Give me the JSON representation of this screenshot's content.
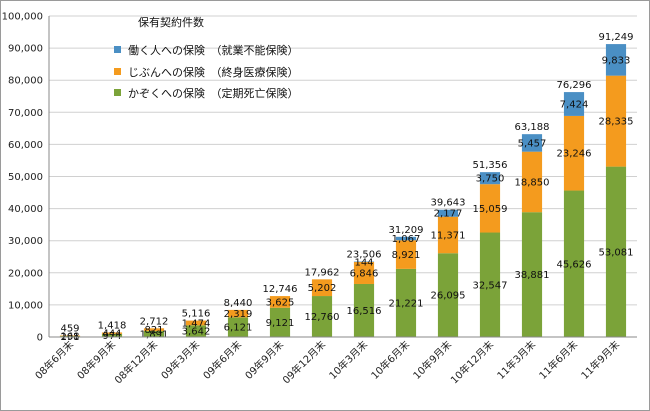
{
  "chart_data": {
    "type": "bar",
    "stacked": true,
    "legend_title": "保有契約件数",
    "legend_position": "top-left",
    "categories": [
      "08年6月末",
      "08年9月末",
      "08年12月末",
      "09年3月末",
      "09年6月末",
      "09年9月末",
      "09年12月末",
      "10年3月末",
      "10年6月末",
      "10年9月末",
      "10年12月末",
      "11年3月末",
      "11年6月末",
      "11年9月末"
    ],
    "series": [
      {
        "name": "かぞくへの保険　（定期死亡保険）",
        "color": "#7ba339",
        "values": [
          291,
          974,
          1891,
          3642,
          6121,
          9121,
          12760,
          16516,
          21221,
          26095,
          32547,
          38881,
          45626,
          53081
        ]
      },
      {
        "name": "じぶんへの保険　（終身医療保険）",
        "color": "#f49b1e",
        "values": [
          168,
          444,
          821,
          1474,
          2319,
          3625,
          5202,
          6846,
          8921,
          11371,
          15059,
          18850,
          23246,
          28335
        ]
      },
      {
        "name": "働く人への保険　（就業不能保険）",
        "color": "#4a8fc4",
        "values": [
          0,
          0,
          0,
          0,
          0,
          0,
          0,
          144,
          1067,
          2177,
          3750,
          5457,
          7424,
          9833
        ]
      }
    ],
    "segment_labels": [
      [
        "291",
        "974",
        "1,891",
        "3,642",
        "6,121",
        "9,121",
        "12,760",
        "16,516",
        "21,221",
        "26,095",
        "32,547",
        "38,881",
        "45,626",
        "53,081"
      ],
      [
        "168",
        "444",
        "821",
        "1,474",
        "2,319",
        "3,625",
        "5,202",
        "6,846",
        "8,921",
        "11,371",
        "15,059",
        "18,850",
        "23,246",
        "28,335"
      ],
      [
        "",
        "",
        "",
        "",
        "",
        "",
        "",
        "144",
        "1,067",
        "2,177",
        "3,750",
        "5,457",
        "7,424",
        "9,833"
      ]
    ],
    "totals": [
      459,
      1418,
      2712,
      5116,
      8440,
      12746,
      17962,
      23506,
      31209,
      39643,
      51356,
      63188,
      76296,
      91249
    ],
    "total_labels": [
      "459",
      "1,418",
      "2,712",
      "5,116",
      "8,440",
      "12,746",
      "17,962",
      "23,506",
      "31,209",
      "39,643",
      "51,356",
      "63,188",
      "76,296",
      "91,249"
    ],
    "y_ticks": [
      "0",
      "10,000",
      "20,000",
      "30,000",
      "40,000",
      "50,000",
      "60,000",
      "70,000",
      "80,000",
      "90,000",
      "100,000"
    ],
    "ylim": [
      0,
      100000
    ],
    "grid": true,
    "xlabel": "",
    "ylabel": "",
    "title": ""
  }
}
